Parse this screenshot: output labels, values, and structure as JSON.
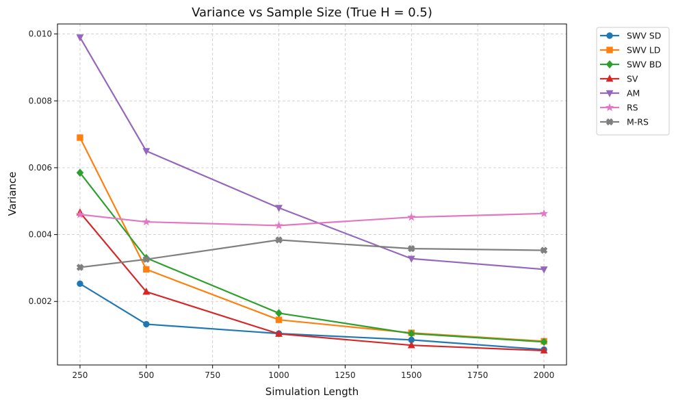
{
  "chart_data": {
    "type": "line",
    "title": "Variance vs Sample Size (True H = 0.5)",
    "xlabel": "Simulation Length",
    "ylabel": "Variance",
    "x": [
      250,
      500,
      1000,
      1500,
      2000
    ],
    "xlim": [
      165,
      2085
    ],
    "ylim": [
      0.0001,
      0.0103
    ],
    "xticks": [
      250,
      500,
      750,
      1000,
      1250,
      1500,
      1750,
      2000
    ],
    "xtick_labels": [
      "250",
      "500",
      "750",
      "1000",
      "1250",
      "1500",
      "1750",
      "2000"
    ],
    "yticks": [
      0.002,
      0.004,
      0.006,
      0.008,
      0.01
    ],
    "ytick_labels": [
      "0.002",
      "0.004",
      "0.006",
      "0.008",
      "0.010"
    ],
    "grid": true,
    "legend_position": "outside-top-right",
    "series": [
      {
        "name": "SWV SD",
        "color": "#1f77b4",
        "marker": "circle",
        "values": [
          0.00253,
          0.00132,
          0.00104,
          0.00085,
          0.00056
        ]
      },
      {
        "name": "SWV LD",
        "color": "#ff7f0e",
        "marker": "square",
        "values": [
          0.0069,
          0.00296,
          0.00145,
          0.00106,
          0.00081
        ]
      },
      {
        "name": "SWV BD",
        "color": "#2ca02c",
        "marker": "diamond",
        "values": [
          0.00585,
          0.0033,
          0.00165,
          0.00104,
          0.00079
        ]
      },
      {
        "name": "SV",
        "color": "#d62728",
        "marker": "triangle-up",
        "values": [
          0.00466,
          0.00229,
          0.00103,
          0.00069,
          0.00053
        ]
      },
      {
        "name": "AM",
        "color": "#9467bd",
        "marker": "triangle-down",
        "values": [
          0.0099,
          0.0065,
          0.0048,
          0.00328,
          0.00296
        ]
      },
      {
        "name": "RS",
        "color": "#e377c2",
        "marker": "star",
        "values": [
          0.0046,
          0.00438,
          0.00427,
          0.00452,
          0.00463
        ]
      },
      {
        "name": "M-RS",
        "color": "#7f7f7f",
        "marker": "x",
        "values": [
          0.00302,
          0.00326,
          0.00384,
          0.00358,
          0.00353
        ]
      }
    ]
  }
}
